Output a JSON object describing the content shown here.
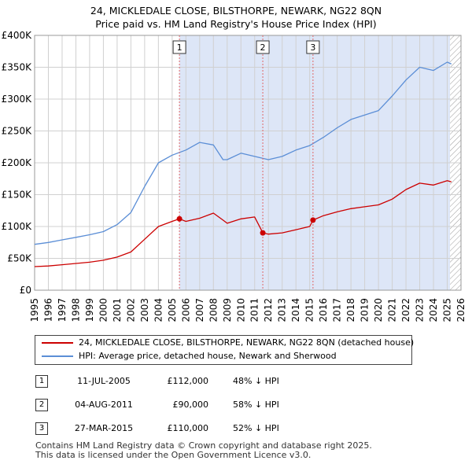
{
  "title_line1": "24, MICKLEDALE CLOSE, BILSTHORPE, NEWARK, NG22 8QN",
  "title_line2": "Price paid vs. HM Land Registry's House Price Index (HPI)",
  "legend": {
    "property": "24, MICKLEDALE CLOSE, BILSTHORPE, NEWARK, NG22 8QN (detached house)",
    "hpi": "HPI: Average price, detached house, Newark and Sherwood"
  },
  "sales": [
    {
      "num": "1",
      "date": "11-JUL-2005",
      "price": "£112,000",
      "hpi_diff": "48% ↓ HPI"
    },
    {
      "num": "2",
      "date": "04-AUG-2011",
      "price": "£90,000",
      "hpi_diff": "58% ↓ HPI"
    },
    {
      "num": "3",
      "date": "27-MAR-2015",
      "price": "£110,000",
      "hpi_diff": "52% ↓ HPI"
    }
  ],
  "footer_line1": "Contains HM Land Registry data © Crown copyright and database right 2025.",
  "footer_line2": "This data is licensed under the Open Government Licence v3.0.",
  "colors": {
    "property": "#cc0000",
    "hpi": "#5b8ed6",
    "shade": "#dde6f7",
    "grid": "#d0d0d0"
  },
  "chart_data": {
    "type": "line",
    "title": "24, MICKLEDALE CLOSE, BILSTHORPE, NEWARK, NG22 8QN",
    "subtitle": "Price paid vs. HM Land Registry's House Price Index (HPI)",
    "xlabel": "",
    "ylabel": "",
    "xlim": [
      1995,
      2026
    ],
    "ylim": [
      0,
      400000
    ],
    "x_ticks": [
      "1995",
      "1996",
      "1997",
      "1998",
      "1999",
      "2000",
      "2001",
      "2002",
      "2003",
      "2004",
      "2005",
      "2006",
      "2007",
      "2008",
      "2009",
      "2010",
      "2011",
      "2012",
      "2013",
      "2014",
      "2015",
      "2016",
      "2017",
      "2018",
      "2019",
      "2020",
      "2021",
      "2022",
      "2023",
      "2024",
      "2025",
      "2026"
    ],
    "y_ticks": [
      {
        "value": 0,
        "label": "£0"
      },
      {
        "value": 50000,
        "label": "£50K"
      },
      {
        "value": 100000,
        "label": "£100K"
      },
      {
        "value": 150000,
        "label": "£150K"
      },
      {
        "value": 200000,
        "label": "£200K"
      },
      {
        "value": 250000,
        "label": "£250K"
      },
      {
        "value": 300000,
        "label": "£300K"
      },
      {
        "value": 350000,
        "label": "£350K"
      },
      {
        "value": 400000,
        "label": "£400K"
      }
    ],
    "grid": true,
    "shaded_range": [
      2005.53,
      2025.2
    ],
    "hatched_from": 2025.2,
    "series": [
      {
        "name": "24, MICKLEDALE CLOSE, BILSTHORPE, NEWARK, NG22 8QN (detached house)",
        "x": [
          1995,
          1996,
          1997,
          1998,
          1999,
          2000,
          2001,
          2002,
          2003,
          2004,
          2005,
          2005.53,
          2006,
          2007,
          2008,
          2008.7,
          2009,
          2010,
          2011,
          2011.59,
          2012,
          2013,
          2014,
          2015,
          2015.24,
          2016,
          2017,
          2018,
          2019,
          2020,
          2021,
          2022,
          2023,
          2024,
          2025,
          2025.3
        ],
        "y": [
          37000,
          38000,
          40000,
          42000,
          44000,
          47000,
          52000,
          60000,
          80000,
          100000,
          108000,
          112000,
          108000,
          113000,
          121000,
          110000,
          105000,
          112000,
          115000,
          90000,
          88000,
          90000,
          95000,
          100000,
          110000,
          117000,
          123000,
          128000,
          131000,
          134000,
          143000,
          158000,
          168000,
          165000,
          172000,
          170000
        ]
      },
      {
        "name": "HPI: Average price, detached house, Newark and Sherwood",
        "x": [
          1995,
          1996,
          1997,
          1998,
          1999,
          2000,
          2001,
          2002,
          2003,
          2004,
          2005,
          2006,
          2007,
          2008,
          2008.7,
          2009,
          2010,
          2011,
          2012,
          2013,
          2014,
          2015,
          2016,
          2017,
          2018,
          2019,
          2020,
          2021,
          2022,
          2023,
          2024,
          2025,
          2025.3
        ],
        "y": [
          72000,
          75000,
          79000,
          83000,
          87000,
          92000,
          103000,
          122000,
          163000,
          200000,
          212000,
          220000,
          232000,
          228000,
          205000,
          205000,
          215000,
          210000,
          205000,
          210000,
          220000,
          227000,
          240000,
          255000,
          268000,
          275000,
          282000,
          305000,
          330000,
          350000,
          345000,
          358000,
          355000
        ]
      }
    ],
    "sales": [
      {
        "label": "1",
        "x": 2005.53,
        "value": 112000
      },
      {
        "label": "2",
        "x": 2011.59,
        "value": 90000
      },
      {
        "label": "3",
        "x": 2015.24,
        "value": 110000
      }
    ]
  }
}
